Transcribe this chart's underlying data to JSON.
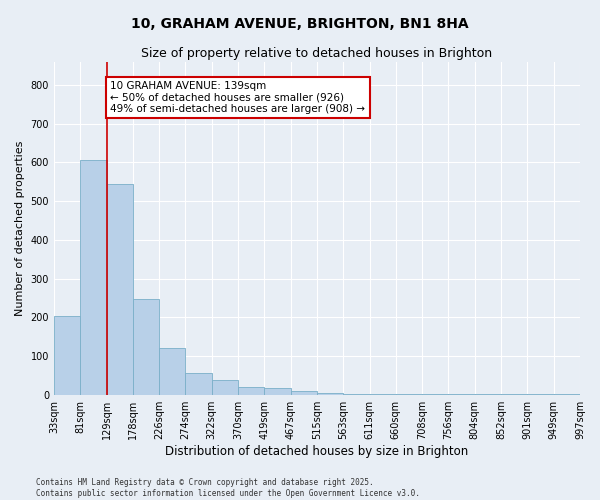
{
  "title": "10, GRAHAM AVENUE, BRIGHTON, BN1 8HA",
  "subtitle": "Size of property relative to detached houses in Brighton",
  "xlabel": "Distribution of detached houses by size in Brighton",
  "ylabel": "Number of detached properties",
  "bar_heights": [
    203,
    607,
    545,
    248,
    120,
    57,
    38,
    20,
    18,
    10,
    5,
    3,
    1,
    1,
    1,
    1,
    1,
    1,
    1,
    1
  ],
  "bar_labels": [
    "33sqm",
    "81sqm",
    "129sqm",
    "178sqm",
    "226sqm",
    "274sqm",
    "322sqm",
    "370sqm",
    "419sqm",
    "467sqm",
    "515sqm",
    "563sqm",
    "611sqm",
    "660sqm",
    "708sqm",
    "756sqm",
    "804sqm",
    "852sqm",
    "901sqm",
    "949sqm",
    "997sqm"
  ],
  "bar_color": "#b8d0e8",
  "bar_edge_color": "#7aafc8",
  "background_color": "#e8eef5",
  "grid_color": "#ffffff",
  "annotation_text": "10 GRAHAM AVENUE: 139sqm\n← 50% of detached houses are smaller (926)\n49% of semi-detached houses are larger (908) →",
  "vline_x": 1.5,
  "ylim": [
    0,
    860
  ],
  "yticks": [
    0,
    100,
    200,
    300,
    400,
    500,
    600,
    700,
    800
  ],
  "footer_line1": "Contains HM Land Registry data © Crown copyright and database right 2025.",
  "footer_line2": "Contains public sector information licensed under the Open Government Licence v3.0.",
  "title_fontsize": 10,
  "subtitle_fontsize": 9,
  "tick_fontsize": 7,
  "ylabel_fontsize": 8,
  "xlabel_fontsize": 8.5,
  "annotation_fontsize": 7.5,
  "footer_fontsize": 5.5
}
